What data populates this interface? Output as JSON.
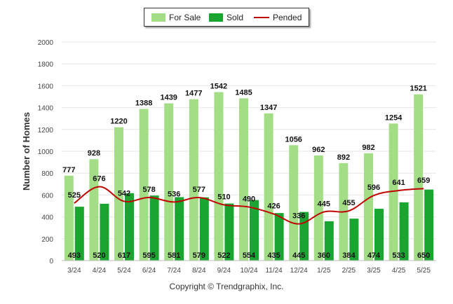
{
  "legend": {
    "for_sale": "For Sale",
    "sold": "Sold",
    "pended": "Pended"
  },
  "copyright": "Copyright © Trendgraphix, Inc.",
  "colors": {
    "for_sale": "#a3de86",
    "sold": "#1aa531",
    "pended": "#c00000",
    "grid": "#e6e6e6"
  },
  "chart_data": {
    "type": "bar",
    "ylabel": "Number of Homes",
    "xlabel": "",
    "ylim": [
      0,
      2000
    ],
    "yticks": [
      0,
      200,
      400,
      600,
      800,
      1000,
      1200,
      1400,
      1600,
      1800,
      2000
    ],
    "categories": [
      "3/24",
      "4/24",
      "5/24",
      "6/24",
      "7/24",
      "8/24",
      "9/24",
      "10/24",
      "11/24",
      "12/24",
      "1/25",
      "2/25",
      "3/25",
      "4/25",
      "5/25"
    ],
    "series": [
      {
        "name": "For Sale",
        "type": "bar",
        "values": [
          777,
          928,
          1220,
          1388,
          1439,
          1477,
          1542,
          1485,
          1347,
          1056,
          962,
          892,
          982,
          1254,
          1521
        ]
      },
      {
        "name": "Sold",
        "type": "bar",
        "values": [
          493,
          520,
          617,
          595,
          581,
          579,
          522,
          554,
          435,
          445,
          360,
          384,
          474,
          533,
          650
        ]
      },
      {
        "name": "Pended",
        "type": "line",
        "values": [
          525,
          676,
          542,
          578,
          536,
          577,
          510,
          490,
          426,
          336,
          445,
          455,
          596,
          641,
          659
        ]
      }
    ],
    "grid": true,
    "legend_position": "top"
  }
}
